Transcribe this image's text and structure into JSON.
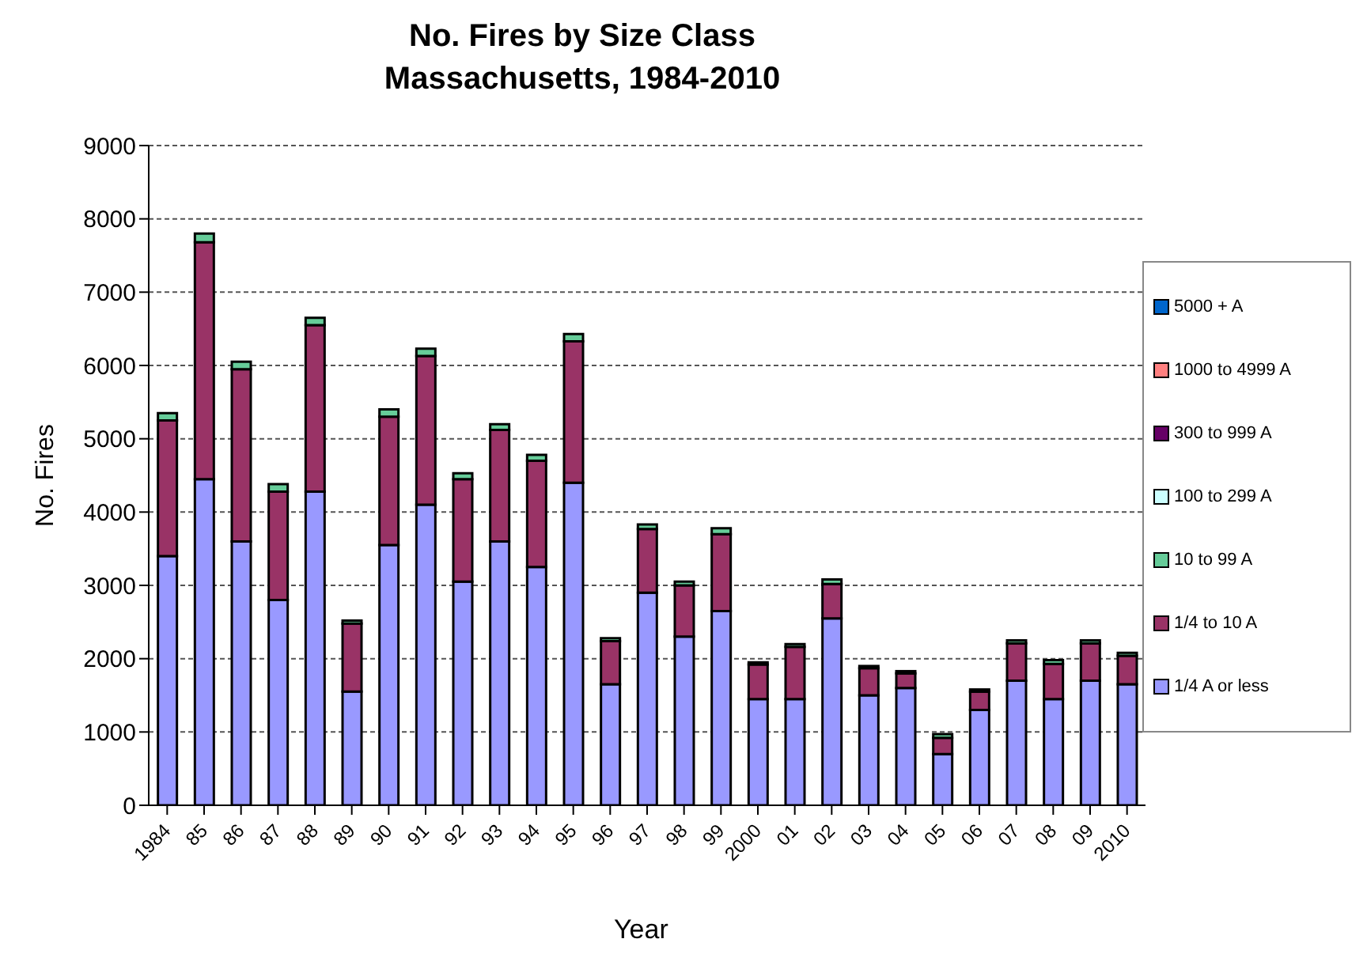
{
  "chart_data": {
    "type": "bar",
    "title": "No. Fires by Size Class\nMassachusetts, 1984-2010",
    "xlabel": "Year",
    "ylabel": "No. Fires",
    "categories": [
      "1984",
      "85",
      "86",
      "87",
      "88",
      "89",
      "90",
      "91",
      "92",
      "93",
      "94",
      "95",
      "96",
      "97",
      "98",
      "99",
      "2000",
      "01",
      "02",
      "03",
      "04",
      "05",
      "06",
      "07",
      "08",
      "09",
      "2010"
    ],
    "stacked": true,
    "grid": "y",
    "legend": "right",
    "ylim": [
      0,
      9000
    ],
    "yticks": [
      0,
      1000,
      2000,
      3000,
      4000,
      5000,
      6000,
      7000,
      8000,
      9000
    ],
    "series": [
      {
        "name": "1/4 A or less",
        "color": "#9999ff",
        "values": [
          3400,
          4450,
          3600,
          2800,
          4280,
          1550,
          3550,
          4100,
          3050,
          3600,
          3250,
          4400,
          1650,
          2900,
          2300,
          2650,
          1450,
          1450,
          2550,
          1500,
          1600,
          700,
          1300,
          1700,
          1450,
          1700,
          1650
        ]
      },
      {
        "name": "1/4 to 10 A",
        "color": "#993366",
        "values": [
          1850,
          3230,
          2350,
          1480,
          2270,
          930,
          1750,
          2030,
          1400,
          1520,
          1450,
          1930,
          590,
          870,
          700,
          1050,
          470,
          710,
          470,
          370,
          200,
          220,
          250,
          510,
          480,
          510,
          390
        ]
      },
      {
        "name": "10 to 99 A",
        "color": "#66cc99",
        "values": [
          100,
          120,
          100,
          100,
          100,
          40,
          100,
          100,
          80,
          80,
          80,
          100,
          40,
          60,
          50,
          80,
          30,
          40,
          60,
          30,
          30,
          50,
          30,
          40,
          50,
          40,
          40
        ]
      },
      {
        "name": "100 to 299 A",
        "color": "#ccffff",
        "values": [
          0,
          0,
          0,
          0,
          0,
          0,
          0,
          0,
          0,
          0,
          0,
          0,
          0,
          0,
          0,
          0,
          0,
          0,
          0,
          0,
          0,
          0,
          0,
          0,
          0,
          0,
          0
        ]
      },
      {
        "name": "300 to 999 A",
        "color": "#660066",
        "values": [
          0,
          0,
          0,
          0,
          0,
          0,
          0,
          0,
          0,
          0,
          0,
          0,
          0,
          0,
          0,
          0,
          0,
          0,
          0,
          0,
          0,
          0,
          0,
          0,
          0,
          0,
          0
        ]
      },
      {
        "name": "1000 to 4999 A",
        "color": "#ff8080",
        "values": [
          0,
          0,
          0,
          0,
          0,
          0,
          0,
          0,
          0,
          0,
          0,
          0,
          0,
          0,
          0,
          0,
          0,
          0,
          0,
          0,
          0,
          0,
          0,
          0,
          0,
          0,
          0
        ]
      },
      {
        "name": "5000 + A",
        "color": "#0066cc",
        "values": [
          0,
          0,
          0,
          0,
          0,
          0,
          0,
          0,
          0,
          0,
          0,
          0,
          0,
          0,
          0,
          0,
          0,
          0,
          0,
          0,
          0,
          0,
          0,
          0,
          0,
          0,
          0
        ]
      }
    ]
  }
}
